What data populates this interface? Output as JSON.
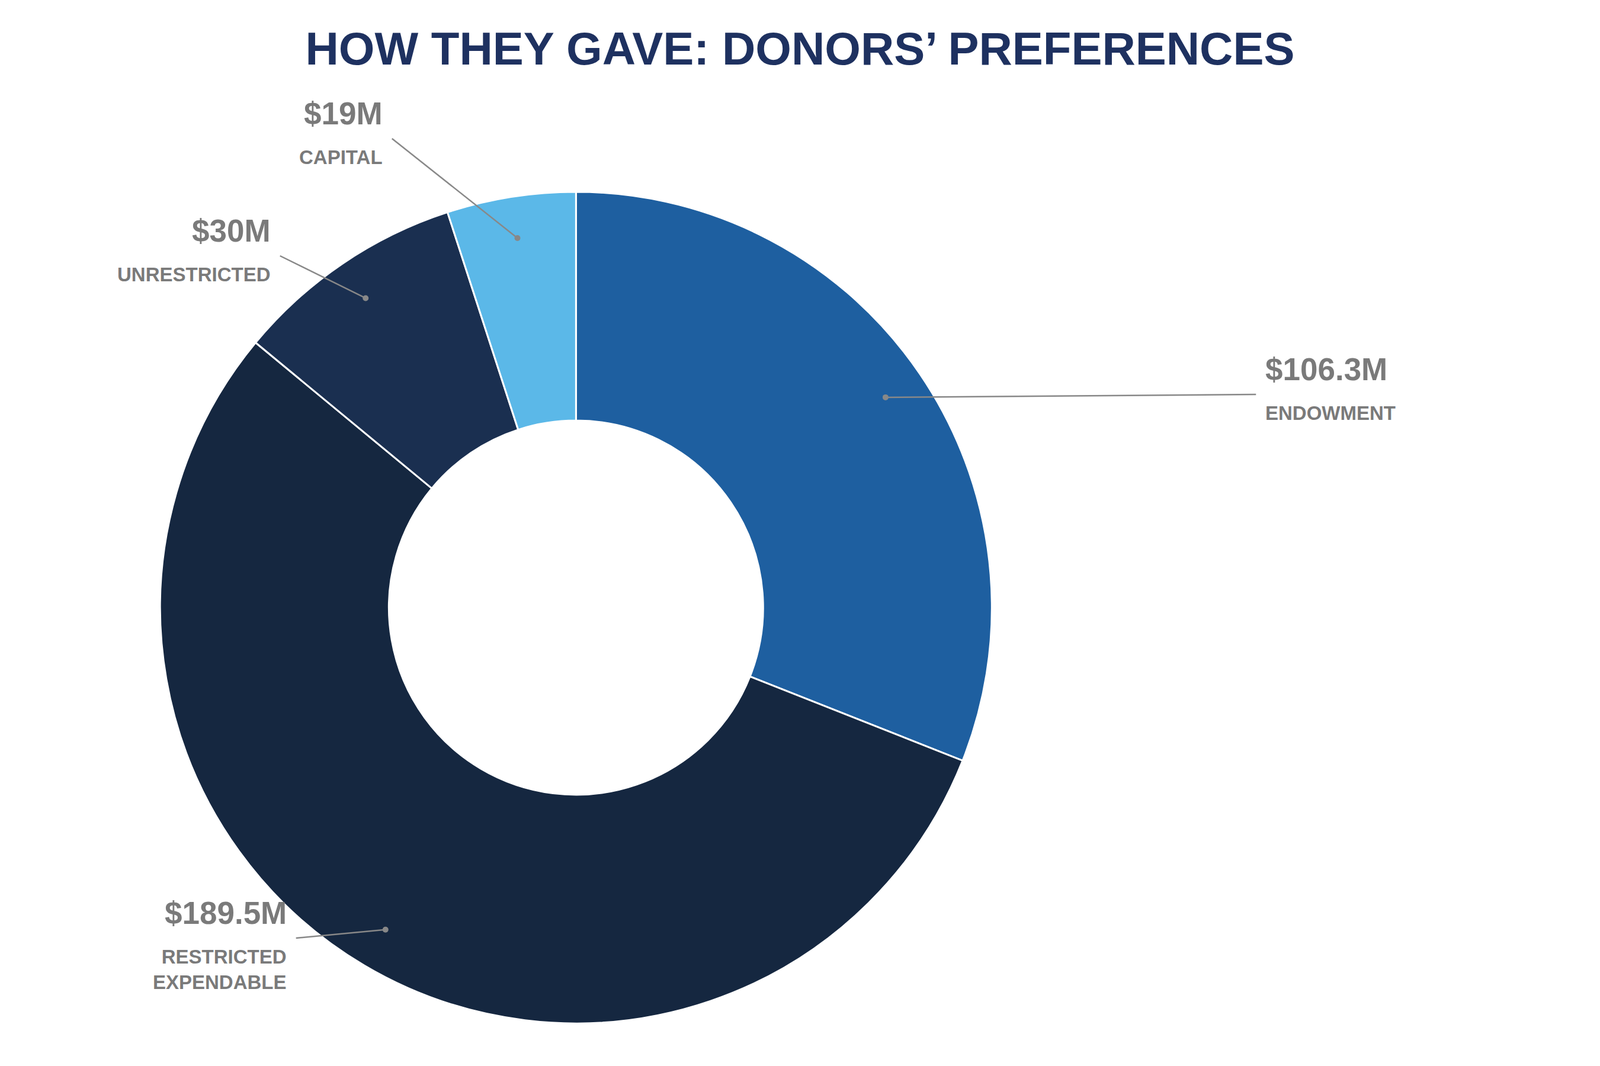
{
  "chart_data": {
    "type": "pie",
    "title": "HOW THEY GAVE: DONORS’ PREFERENCES",
    "categories": [
      "ENDOWMENT",
      "RESTRICTED\nEXPENDABLE",
      "UNRESTRICTED",
      "CAPITAL"
    ],
    "values": [
      31,
      55,
      9,
      5
    ],
    "annotations": [
      "$106.3M",
      "$189.5M",
      "$30M",
      "$19M"
    ],
    "colors": [
      "#1e5fa0",
      "#152740",
      "#1a2f50",
      "#5bb8e8"
    ]
  }
}
